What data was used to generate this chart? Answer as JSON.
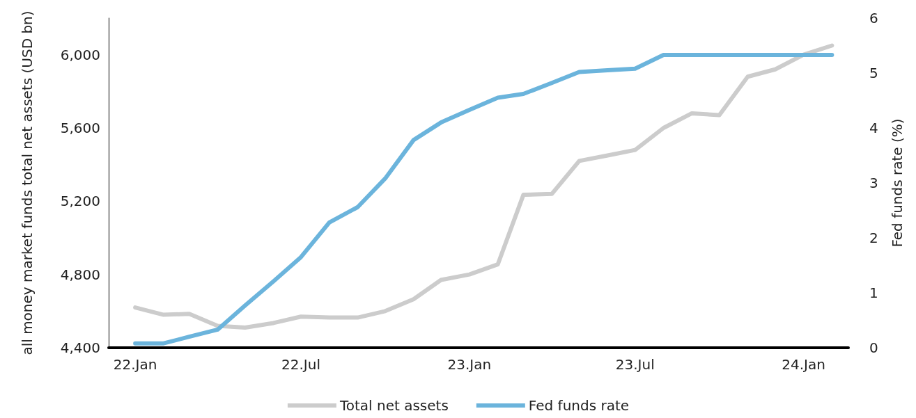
{
  "chart_data": {
    "type": "line",
    "ylabel": "all money market funds total net assets (USD bn)",
    "y2label": "Fed funds rate (%)",
    "x": [
      "2022-01",
      "2022-02",
      "2022-03",
      "2022-04",
      "2022-05",
      "2022-06",
      "2022-07",
      "2022-08",
      "2022-09",
      "2022-10",
      "2022-11",
      "2022-12",
      "2023-01",
      "2023-02",
      "2023-03",
      "2023-04",
      "2023-05",
      "2023-06",
      "2023-07",
      "2023-08",
      "2023-09",
      "2023-10",
      "2023-11",
      "2023-12",
      "2024-01",
      "2024-02"
    ],
    "series": [
      {
        "name": "Total net assets",
        "color": "#cccccc",
        "values": [
          4620,
          4580,
          4585,
          4520,
          4510,
          4535,
          4570,
          4565,
          4565,
          4600,
          4665,
          4770,
          4800,
          4855,
          5235,
          5240,
          5420,
          5450,
          5480,
          5600,
          5680,
          5670,
          5880,
          5920,
          6000,
          6050
        ]
      },
      {
        "name": "Fed funds rate",
        "color": "#6bb4dc",
        "axis": "y2",
        "values": [
          0.08,
          0.08,
          0.2,
          0.33,
          0.77,
          1.21,
          1.65,
          2.28,
          2.56,
          3.08,
          3.78,
          4.1,
          4.33,
          4.55,
          4.62,
          4.82,
          5.02,
          5.05,
          5.08,
          5.33,
          5.33,
          5.33,
          5.33,
          5.33,
          5.33,
          5.33
        ]
      }
    ],
    "xlim": [
      "2021-12-03",
      "2024-02-19"
    ],
    "xticks": [
      {
        "value": "2022-01",
        "label": "22.Jan"
      },
      {
        "value": "2022-07",
        "label": "22.Jul"
      },
      {
        "value": "2023-01",
        "label": "23.Jan"
      },
      {
        "value": "2023-07",
        "label": "23.Jul"
      },
      {
        "value": "2024-01",
        "label": "24.Jan"
      }
    ],
    "ylim": [
      4400,
      6200
    ],
    "yticks": [
      {
        "value": 4400,
        "label": "4,400"
      },
      {
        "value": 4800,
        "label": "4,800"
      },
      {
        "value": 5200,
        "label": "5,200"
      },
      {
        "value": 5600,
        "label": "5,600"
      },
      {
        "value": 6000,
        "label": "6,000"
      }
    ],
    "y2lim": [
      0,
      6
    ],
    "y2ticks": [
      0,
      1,
      2,
      3,
      4,
      5,
      6
    ],
    "grid": false,
    "legend": "bottom",
    "marker": "none",
    "line_style": "solid"
  }
}
